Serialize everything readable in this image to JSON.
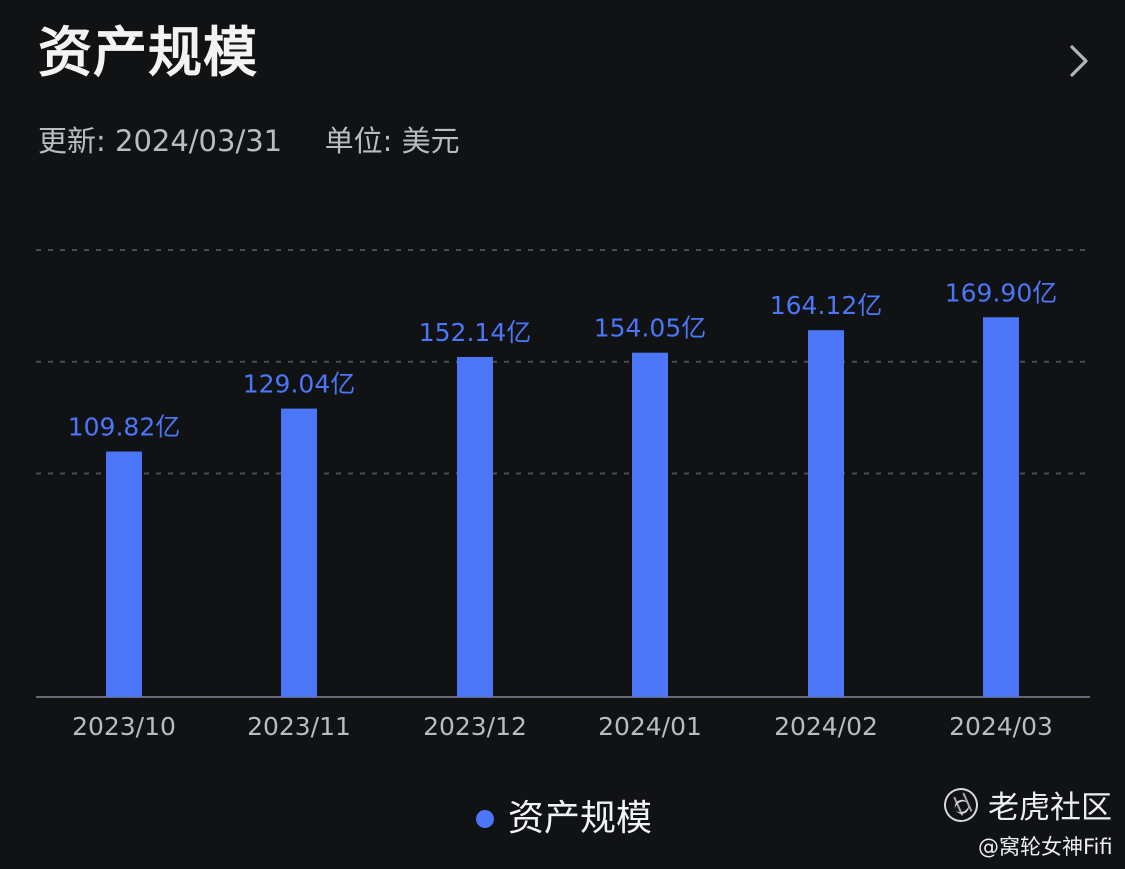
{
  "header": {
    "title": "资产规模",
    "updated_text": "更新: 2024/03/31",
    "unit_text": "单位: 美元",
    "chevron_icon": "chevron-right-icon"
  },
  "chart_data": {
    "type": "bar",
    "categories": [
      "2023/10",
      "2023/11",
      "2023/12",
      "2024/01",
      "2024/02",
      "2024/03"
    ],
    "values": [
      109.82,
      129.04,
      152.14,
      154.05,
      164.12,
      169.9
    ],
    "data_labels": [
      "109.82亿",
      "129.04亿",
      "152.14亿",
      "154.05亿",
      "164.12亿",
      "169.90亿"
    ],
    "series": [
      {
        "name": "资产规模",
        "values": [
          109.82,
          129.04,
          152.14,
          154.05,
          164.12,
          169.9
        ]
      }
    ],
    "title": "资产规模",
    "xlabel": "",
    "ylabel": "",
    "ylim": [
      0,
      200
    ],
    "grid": true,
    "legend_position": "bottom-center",
    "colors": {
      "bar": "#4a76f7",
      "label": "#4a76f7",
      "grid": "#4a4c52",
      "axis": "#676a72",
      "tick": "#b8bcc3"
    }
  },
  "legend": {
    "label": "资产规模",
    "color": "#4a76f7"
  },
  "watermark": {
    "brand": "老虎社区",
    "author": "@窝轮女神Fifi",
    "icon": "tiger-community-icon"
  }
}
